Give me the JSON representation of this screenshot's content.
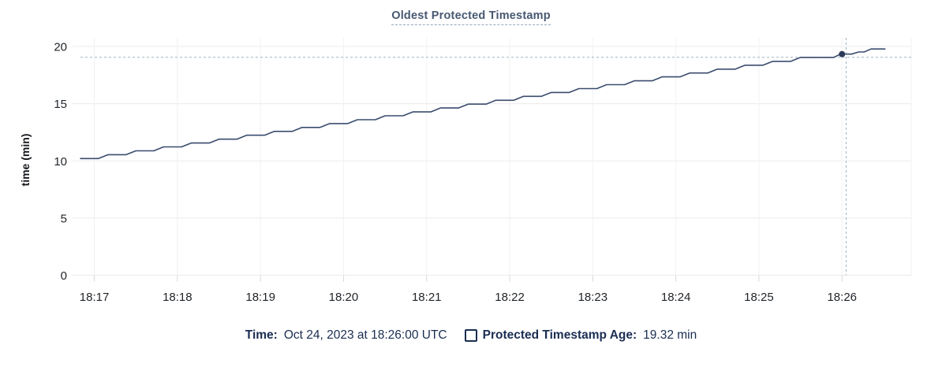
{
  "title": "Oldest Protected Timestamp",
  "legend": {
    "time_label": "Time:",
    "time_value": "Oct 24, 2023 at 18:26:00 UTC",
    "series_label": "Protected Timestamp Age:",
    "series_value": "19.32 min"
  },
  "colors": {
    "series_line": "#3a4c6e",
    "hover_dot": "#2b3a58",
    "crosshair": "#9fb2c1",
    "grid_horizontal": "#ebebeb",
    "grid_vertical": "#f2f2f2",
    "tick_mark": "#d9d9d9",
    "axis_text": "#1f2328",
    "title_text": "#475872",
    "legend_text": "#1a2d52"
  },
  "chart_data": {
    "type": "line",
    "title": "Oldest Protected Timestamp",
    "xlabel": "",
    "ylabel": "time (min)",
    "ylim": [
      0,
      20
    ],
    "yticks": [
      0,
      5,
      10,
      15,
      20
    ],
    "grid": true,
    "legend_position": "bottom",
    "x_domain_seconds": 600,
    "x_domain_note": "seconds after 18:16:50 UTC; plot spans 18:16:50 - 18:26:50",
    "x_tick_seconds": [
      10,
      70,
      130,
      190,
      250,
      310,
      370,
      430,
      490,
      550
    ],
    "x_tick_labels": [
      "18:17",
      "18:18",
      "18:19",
      "18:20",
      "18:21",
      "18:22",
      "18:23",
      "18:24",
      "18:25",
      "18:26"
    ],
    "series": [
      {
        "name": "Protected Timestamp Age",
        "unit": "min",
        "points": [
          [
            0,
            10.2
          ],
          [
            13,
            10.2
          ],
          [
            20,
            10.54
          ],
          [
            33,
            10.54
          ],
          [
            40,
            10.88
          ],
          [
            53,
            10.88
          ],
          [
            60,
            11.22
          ],
          [
            73,
            11.22
          ],
          [
            80,
            11.56
          ],
          [
            93,
            11.56
          ],
          [
            100,
            11.9
          ],
          [
            113,
            11.9
          ],
          [
            120,
            12.24
          ],
          [
            133,
            12.24
          ],
          [
            140,
            12.58
          ],
          [
            153,
            12.58
          ],
          [
            160,
            12.92
          ],
          [
            173,
            12.92
          ],
          [
            180,
            13.26
          ],
          [
            193,
            13.26
          ],
          [
            200,
            13.6
          ],
          [
            213,
            13.6
          ],
          [
            220,
            13.94
          ],
          [
            233,
            13.94
          ],
          [
            240,
            14.28
          ],
          [
            253,
            14.28
          ],
          [
            260,
            14.62
          ],
          [
            273,
            14.62
          ],
          [
            280,
            14.96
          ],
          [
            293,
            14.96
          ],
          [
            300,
            15.3
          ],
          [
            313,
            15.3
          ],
          [
            320,
            15.64
          ],
          [
            333,
            15.64
          ],
          [
            340,
            15.98
          ],
          [
            353,
            15.98
          ],
          [
            360,
            16.32
          ],
          [
            373,
            16.32
          ],
          [
            380,
            16.66
          ],
          [
            393,
            16.66
          ],
          [
            400,
            17.0
          ],
          [
            413,
            17.0
          ],
          [
            420,
            17.34
          ],
          [
            433,
            17.34
          ],
          [
            440,
            17.68
          ],
          [
            453,
            17.68
          ],
          [
            460,
            18.02
          ],
          [
            473,
            18.02
          ],
          [
            480,
            18.36
          ],
          [
            493,
            18.36
          ],
          [
            500,
            18.7
          ],
          [
            513,
            18.7
          ],
          [
            520,
            19.04
          ],
          [
            544,
            19.04
          ],
          [
            549,
            19.33
          ],
          [
            557,
            19.33
          ],
          [
            562,
            19.52
          ],
          [
            566,
            19.52
          ],
          [
            571,
            19.78
          ],
          [
            581,
            19.78
          ]
        ]
      }
    ],
    "hover": {
      "time_label": "Oct 24, 2023 at 18:26:00 UTC",
      "value": 19.32,
      "dot": {
        "t": 550,
        "v": 19.33
      },
      "crosshair": {
        "t": 553,
        "h_value": 19.05
      }
    }
  }
}
